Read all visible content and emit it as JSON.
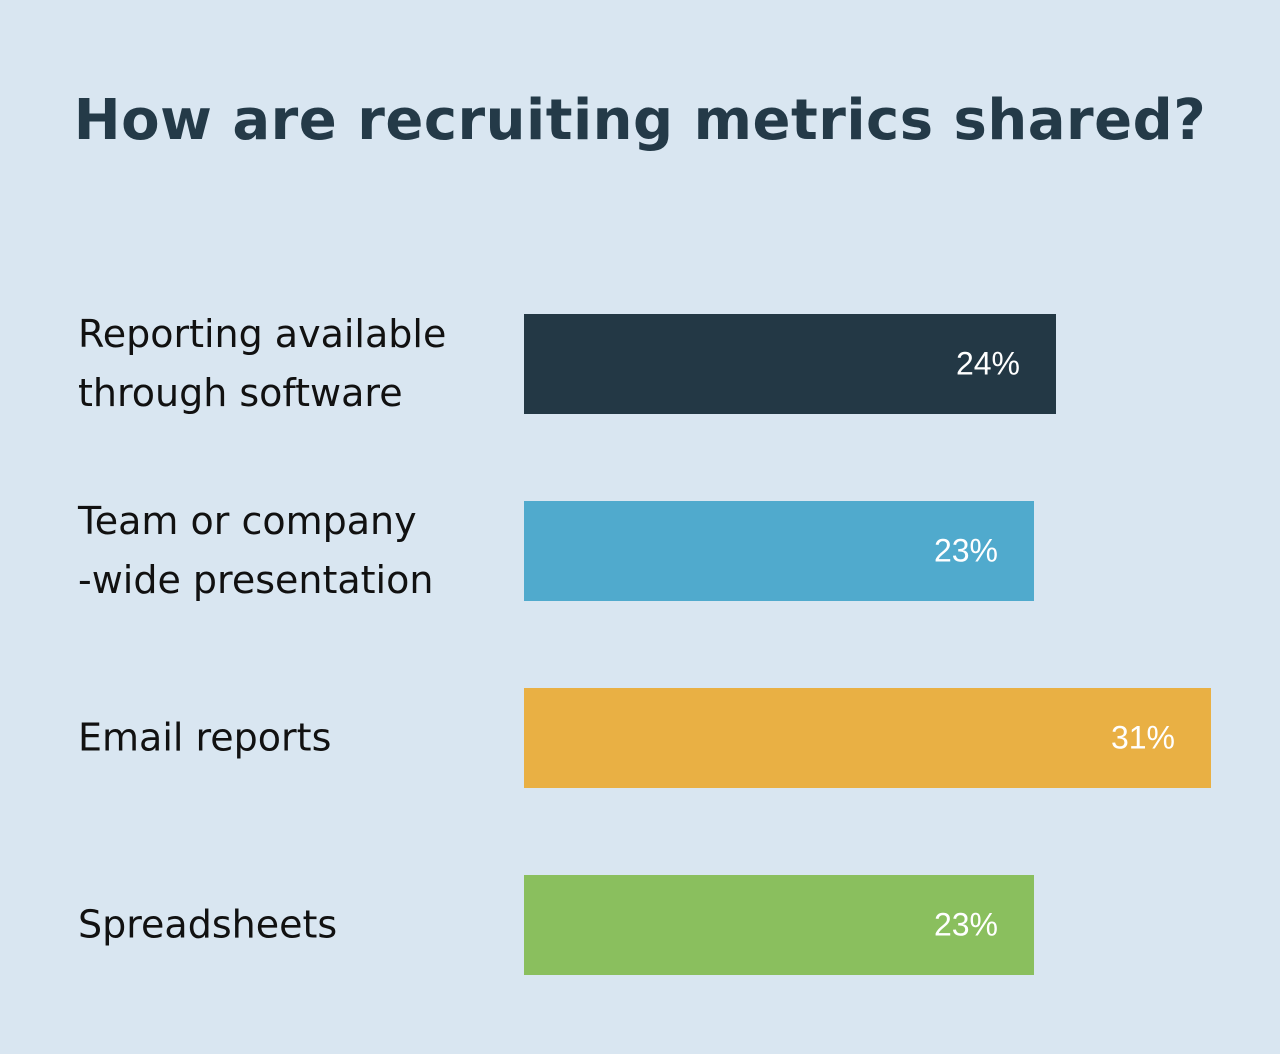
{
  "chart_data": {
    "type": "bar",
    "orientation": "horizontal",
    "title": "How are recruiting metrics shared?",
    "xlabel": "",
    "ylabel": "",
    "grid": false,
    "legend": "none",
    "xlim": [
      0,
      31
    ],
    "categories": [
      [
        "Reporting available",
        "through software"
      ],
      [
        "Team or company",
        "-wide presentation"
      ],
      [
        "Email reports"
      ],
      [
        "Spreadsheets"
      ]
    ],
    "values": [
      24,
      23,
      31,
      23
    ],
    "value_labels": [
      "24%",
      "23%",
      "31%",
      "23%"
    ],
    "colors": [
      "#233845",
      "#50aacd",
      "#e9b044",
      "#8abf5e"
    ]
  }
}
